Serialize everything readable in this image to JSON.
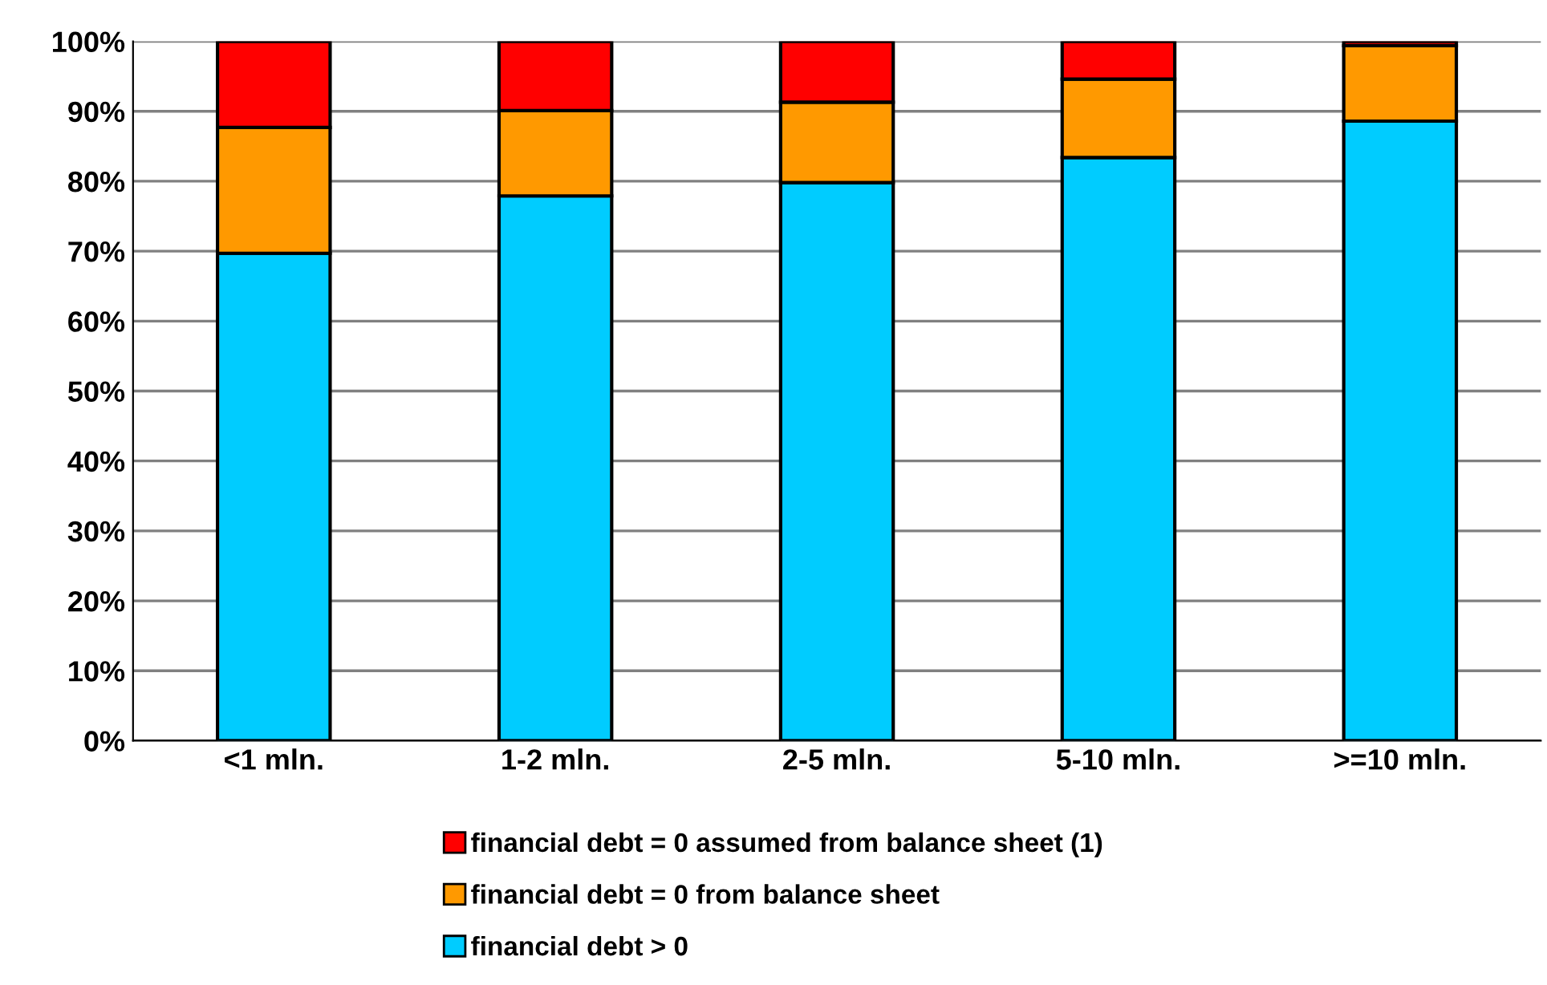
{
  "chart_data": {
    "type": "bar",
    "stacked": true,
    "categories": [
      "<1 mln.",
      "1-2 mln.",
      "2-5 mln.",
      "5-10 mln.",
      ">=10 mln."
    ],
    "series": [
      {
        "name": "financial debt > 0",
        "color": "#00ccff",
        "values": [
          69.7,
          77.9,
          79.8,
          83.4,
          88.6
        ]
      },
      {
        "name": "financial debt = 0 from balance sheet",
        "color": "#ff9900",
        "values": [
          18.0,
          12.2,
          11.5,
          11.2,
          10.8
        ]
      },
      {
        "name": "financial debt = 0 assumed from balance sheet (1)",
        "color": "#ff0000",
        "values": [
          12.3,
          9.9,
          8.7,
          5.4,
          0.6
        ]
      }
    ],
    "ylim": [
      0,
      100
    ],
    "yticks": [
      {
        "value": 0,
        "label": "0%"
      },
      {
        "value": 10,
        "label": "10%"
      },
      {
        "value": 20,
        "label": "20%"
      },
      {
        "value": 30,
        "label": "30%"
      },
      {
        "value": 40,
        "label": "40%"
      },
      {
        "value": 50,
        "label": "50%"
      },
      {
        "value": 60,
        "label": "60%"
      },
      {
        "value": 70,
        "label": "70%"
      },
      {
        "value": 80,
        "label": "80%"
      },
      {
        "value": 90,
        "label": "90%"
      },
      {
        "value": 100,
        "label": "100%"
      }
    ],
    "grid": "y",
    "legend": "bottom"
  }
}
